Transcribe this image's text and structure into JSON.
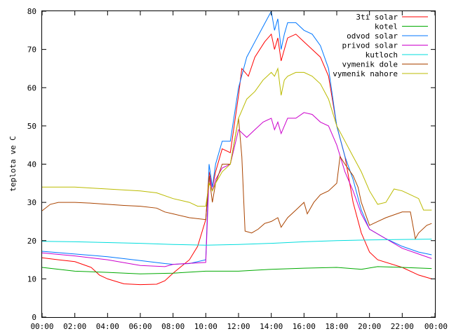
{
  "chart_data": {
    "type": "line",
    "xlabel": "",
    "ylabel": "teplota ve C",
    "xlim": [
      0,
      24
    ],
    "ylim": [
      0,
      80
    ],
    "y_ticks": [
      0,
      10,
      20,
      30,
      40,
      50,
      60,
      70,
      80
    ],
    "x_ticks": [
      "00:00",
      "02:00",
      "04:00",
      "06:00",
      "08:00",
      "10:00",
      "12:00",
      "14:00",
      "16:00",
      "18:00",
      "20:00",
      "22:00",
      "00:00"
    ],
    "grid": false,
    "legend_position": "top-right",
    "series": [
      {
        "name": "3ti solar",
        "color": "#ff0000",
        "points": [
          [
            0,
            15.5
          ],
          [
            1,
            15
          ],
          [
            2,
            14.5
          ],
          [
            3,
            13
          ],
          [
            3.5,
            11
          ],
          [
            4,
            10
          ],
          [
            5,
            8.7
          ],
          [
            6,
            8.5
          ],
          [
            7,
            8.6
          ],
          [
            7.5,
            9.5
          ],
          [
            8,
            11.5
          ],
          [
            9,
            15
          ],
          [
            9.5,
            18.5
          ],
          [
            10,
            25.5
          ],
          [
            10.2,
            38
          ],
          [
            10.4,
            34
          ],
          [
            10.6,
            38
          ],
          [
            11,
            44
          ],
          [
            11.5,
            43
          ],
          [
            12,
            58
          ],
          [
            12.2,
            65
          ],
          [
            12.6,
            63
          ],
          [
            13,
            68
          ],
          [
            13.6,
            72
          ],
          [
            14,
            74
          ],
          [
            14.2,
            70
          ],
          [
            14.4,
            73
          ],
          [
            14.6,
            67
          ],
          [
            14.8,
            70
          ],
          [
            15,
            73
          ],
          [
            15.5,
            74
          ],
          [
            16,
            72
          ],
          [
            16.5,
            70
          ],
          [
            17,
            68
          ],
          [
            17.5,
            63
          ],
          [
            18,
            50
          ],
          [
            18.5,
            42
          ],
          [
            19,
            30
          ],
          [
            19.5,
            22
          ],
          [
            20,
            17
          ],
          [
            20.5,
            15
          ],
          [
            22,
            13
          ],
          [
            23,
            11
          ],
          [
            23.8,
            10
          ]
        ]
      },
      {
        "name": "kotel",
        "color": "#00aa00",
        "points": [
          [
            0,
            13
          ],
          [
            2,
            12
          ],
          [
            4,
            11.7
          ],
          [
            6,
            11.3
          ],
          [
            8,
            11.5
          ],
          [
            10,
            12
          ],
          [
            12,
            12
          ],
          [
            14,
            12.5
          ],
          [
            16,
            12.8
          ],
          [
            18,
            13
          ],
          [
            19.5,
            12.5
          ],
          [
            20.5,
            13.2
          ],
          [
            22,
            13
          ],
          [
            23.8,
            12.7
          ]
        ]
      },
      {
        "name": "odvod solar",
        "color": "#0077ff",
        "points": [
          [
            0,
            17.2
          ],
          [
            2,
            16.5
          ],
          [
            4,
            15.8
          ],
          [
            6,
            14.8
          ],
          [
            7.5,
            14
          ],
          [
            8,
            13.8
          ],
          [
            9,
            14
          ],
          [
            10,
            15
          ],
          [
            10.2,
            40
          ],
          [
            10.4,
            34
          ],
          [
            10.6,
            40
          ],
          [
            11,
            46
          ],
          [
            11.5,
            46
          ],
          [
            12,
            60
          ],
          [
            12.5,
            68
          ],
          [
            13,
            72
          ],
          [
            13.5,
            76
          ],
          [
            14,
            80
          ],
          [
            14.2,
            75
          ],
          [
            14.4,
            78
          ],
          [
            14.6,
            70
          ],
          [
            14.8,
            74
          ],
          [
            15,
            77
          ],
          [
            15.5,
            77
          ],
          [
            16,
            75
          ],
          [
            16.5,
            74
          ],
          [
            17,
            71
          ],
          [
            17.5,
            65
          ],
          [
            18,
            50
          ],
          [
            18.5,
            42
          ],
          [
            19,
            36
          ],
          [
            19.5,
            28
          ],
          [
            20,
            23
          ],
          [
            21,
            20.5
          ],
          [
            22,
            18.5
          ],
          [
            23,
            17
          ],
          [
            23.8,
            16.3
          ]
        ]
      },
      {
        "name": "privod solar",
        "color": "#cc00cc",
        "points": [
          [
            0,
            16.8
          ],
          [
            2,
            16
          ],
          [
            4,
            15
          ],
          [
            6,
            13.5
          ],
          [
            7.5,
            13.2
          ],
          [
            8,
            13.8
          ],
          [
            10,
            14.3
          ],
          [
            10.2,
            37
          ],
          [
            10.4,
            33
          ],
          [
            10.6,
            36
          ],
          [
            11,
            39
          ],
          [
            11.5,
            40
          ],
          [
            12,
            49
          ],
          [
            12.5,
            47
          ],
          [
            13,
            49
          ],
          [
            13.5,
            51
          ],
          [
            14,
            52
          ],
          [
            14.2,
            49
          ],
          [
            14.4,
            51
          ],
          [
            14.6,
            48
          ],
          [
            14.8,
            50
          ],
          [
            15,
            52
          ],
          [
            15.5,
            52
          ],
          [
            16,
            53.5
          ],
          [
            16.5,
            53
          ],
          [
            17,
            51
          ],
          [
            17.5,
            50
          ],
          [
            18,
            45
          ],
          [
            18.5,
            38
          ],
          [
            19,
            33
          ],
          [
            19.5,
            27
          ],
          [
            20,
            23
          ],
          [
            21,
            20.5
          ],
          [
            22,
            18
          ],
          [
            23,
            16.5
          ],
          [
            23.8,
            15.3
          ]
        ]
      },
      {
        "name": "kutloch",
        "color": "#00dddd",
        "points": [
          [
            0,
            19.8
          ],
          [
            2,
            19.7
          ],
          [
            4,
            19.5
          ],
          [
            6,
            19.3
          ],
          [
            8,
            19
          ],
          [
            10,
            18.8
          ],
          [
            12,
            19
          ],
          [
            14,
            19.3
          ],
          [
            16,
            19.7
          ],
          [
            18,
            20
          ],
          [
            20,
            20.2
          ],
          [
            22,
            20.3
          ],
          [
            23.8,
            20.4
          ]
        ]
      },
      {
        "name": "vymenik dole",
        "color": "#aa4400",
        "points": [
          [
            0,
            27.8
          ],
          [
            0.5,
            29.5
          ],
          [
            1,
            30
          ],
          [
            2,
            30
          ],
          [
            3,
            29.8
          ],
          [
            4,
            29.5
          ],
          [
            5,
            29.2
          ],
          [
            6,
            29
          ],
          [
            7,
            28.5
          ],
          [
            7.5,
            27.5
          ],
          [
            8,
            27
          ],
          [
            9,
            26
          ],
          [
            10,
            25.5
          ],
          [
            10.2,
            37
          ],
          [
            10.4,
            30
          ],
          [
            10.6,
            35
          ],
          [
            11,
            40
          ],
          [
            11.5,
            40
          ],
          [
            12,
            52
          ],
          [
            12.2,
            42
          ],
          [
            12.4,
            22.5
          ],
          [
            12.8,
            22
          ],
          [
            13.2,
            23
          ],
          [
            13.6,
            24.5
          ],
          [
            14,
            25
          ],
          [
            14.4,
            26
          ],
          [
            14.6,
            23.5
          ],
          [
            15,
            26
          ],
          [
            15.5,
            28
          ],
          [
            16,
            30
          ],
          [
            16.2,
            27
          ],
          [
            16.6,
            30
          ],
          [
            17,
            32
          ],
          [
            17.5,
            33
          ],
          [
            18,
            35
          ],
          [
            18.2,
            42
          ],
          [
            18.5,
            40
          ],
          [
            19,
            37
          ],
          [
            19.3,
            34
          ],
          [
            19.5,
            30
          ],
          [
            20,
            24
          ],
          [
            20.5,
            25
          ],
          [
            21,
            26
          ],
          [
            22,
            27.5
          ],
          [
            22.5,
            27.5
          ],
          [
            22.8,
            20.5
          ],
          [
            23,
            22
          ],
          [
            23.5,
            24
          ],
          [
            23.8,
            24.5
          ]
        ]
      },
      {
        "name": "vymenik nahore",
        "color": "#bbbb00",
        "points": [
          [
            0,
            34
          ],
          [
            2,
            34
          ],
          [
            4,
            33.5
          ],
          [
            6,
            33
          ],
          [
            7,
            32.5
          ],
          [
            8,
            31
          ],
          [
            9,
            30
          ],
          [
            9.5,
            29
          ],
          [
            10,
            29
          ],
          [
            10.2,
            35
          ],
          [
            10.4,
            33
          ],
          [
            10.6,
            35
          ],
          [
            11,
            38
          ],
          [
            11.5,
            40
          ],
          [
            12,
            52
          ],
          [
            12.5,
            57
          ],
          [
            13,
            59
          ],
          [
            13.5,
            62
          ],
          [
            14,
            64
          ],
          [
            14.2,
            63
          ],
          [
            14.4,
            65
          ],
          [
            14.6,
            58
          ],
          [
            14.8,
            62
          ],
          [
            15,
            63
          ],
          [
            15.5,
            64
          ],
          [
            16,
            64
          ],
          [
            16.5,
            63
          ],
          [
            17,
            61
          ],
          [
            17.5,
            57
          ],
          [
            18,
            50
          ],
          [
            18.5,
            46
          ],
          [
            19,
            42
          ],
          [
            19.5,
            38
          ],
          [
            20,
            33
          ],
          [
            20.5,
            29.5
          ],
          [
            21,
            30
          ],
          [
            21.5,
            33.5
          ],
          [
            22,
            33
          ],
          [
            22.5,
            32
          ],
          [
            23,
            31
          ],
          [
            23.3,
            28
          ],
          [
            23.8,
            28
          ]
        ]
      }
    ]
  }
}
